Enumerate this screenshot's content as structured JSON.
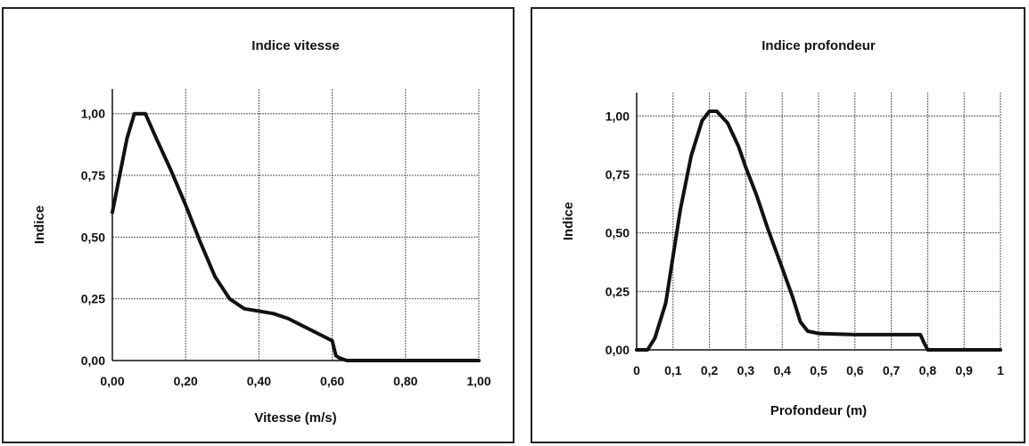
{
  "chart_data": [
    {
      "type": "line",
      "title": "Indice vitesse",
      "xlabel": "Vitesse (m/s)",
      "ylabel": "Indice",
      "xlim": [
        0,
        1
      ],
      "ylim": [
        0,
        1.1
      ],
      "x_ticks": [
        0,
        0.2,
        0.4,
        0.6,
        0.8,
        1.0
      ],
      "x_tick_labels": [
        "0,00",
        "0,20",
        "0,40",
        "0,60",
        "0,80",
        "1,00"
      ],
      "y_ticks": [
        0,
        0.25,
        0.5,
        0.75,
        1.0
      ],
      "y_tick_labels": [
        "0,00",
        "0,25",
        "0,50",
        "0,75",
        "1,00"
      ],
      "grid": true,
      "series": [
        {
          "x": [
            0,
            0.02,
            0.04,
            0.06,
            0.07,
            0.09,
            0.12,
            0.16,
            0.2,
            0.24,
            0.28,
            0.32,
            0.36,
            0.4,
            0.44,
            0.48,
            0.52,
            0.56,
            0.6,
            0.61,
            0.62,
            0.64,
            0.66,
            0.7,
            1.0
          ],
          "y": [
            0.6,
            0.75,
            0.9,
            1.0,
            1.0,
            1.0,
            0.9,
            0.77,
            0.63,
            0.48,
            0.34,
            0.25,
            0.21,
            0.2,
            0.19,
            0.17,
            0.14,
            0.11,
            0.08,
            0.02,
            0.01,
            0.0,
            0.0,
            0.0,
            0.0
          ]
        }
      ]
    },
    {
      "type": "line",
      "title": "Indice profondeur",
      "xlabel": "Profondeur (m)",
      "ylabel": "Indice",
      "xlim": [
        0,
        1
      ],
      "ylim": [
        0,
        1.1
      ],
      "x_ticks": [
        0,
        0.1,
        0.2,
        0.3,
        0.4,
        0.5,
        0.6,
        0.7,
        0.8,
        0.9,
        1.0
      ],
      "x_tick_labels": [
        "0",
        "0,1",
        "0,2",
        "0,3",
        "0,4",
        "0,5",
        "0,6",
        "0,7",
        "0,8",
        "0,9",
        "1"
      ],
      "y_ticks": [
        0,
        0.25,
        0.5,
        0.75,
        1.0
      ],
      "y_tick_labels": [
        "0,00",
        "0,25",
        "0,50",
        "0,75",
        "1,00"
      ],
      "grid": true,
      "series": [
        {
          "x": [
            0,
            0.03,
            0.05,
            0.08,
            0.1,
            0.12,
            0.15,
            0.18,
            0.2,
            0.22,
            0.25,
            0.28,
            0.3,
            0.33,
            0.36,
            0.4,
            0.43,
            0.45,
            0.47,
            0.5,
            0.6,
            0.7,
            0.78,
            0.79,
            0.8,
            0.9,
            1.0
          ],
          "y": [
            0,
            0.0,
            0.05,
            0.2,
            0.4,
            0.6,
            0.83,
            0.98,
            1.02,
            1.02,
            0.97,
            0.87,
            0.78,
            0.66,
            0.52,
            0.35,
            0.22,
            0.12,
            0.08,
            0.07,
            0.065,
            0.065,
            0.065,
            0.03,
            0.0,
            0.0,
            0.0
          ]
        }
      ]
    }
  ]
}
